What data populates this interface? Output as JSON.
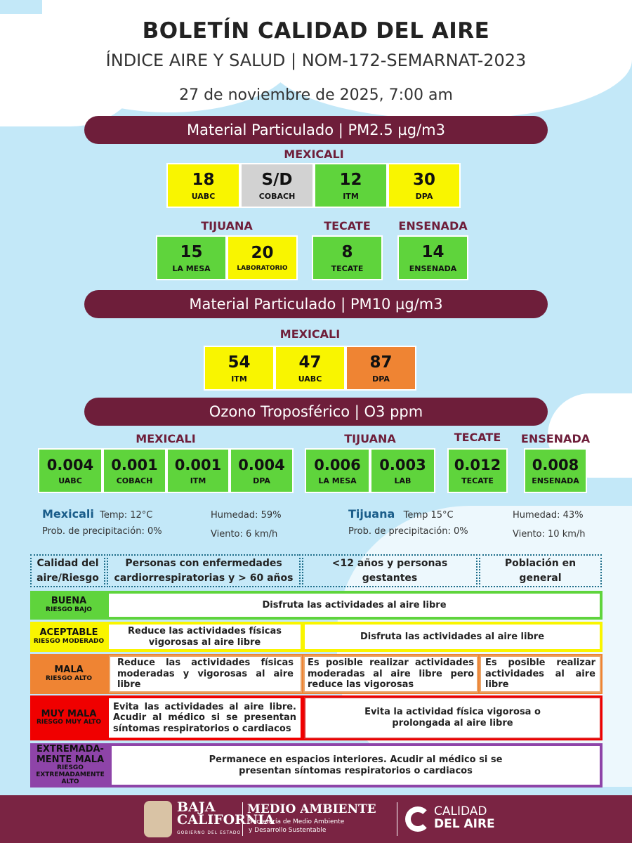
{
  "header": {
    "title": "BOLETÍN CALIDAD DEL AIRE",
    "subtitle": "ÍNDICE AIRE Y SALUD  | NOM-172-SEMARNAT-2023",
    "date": "27 de noviembre de 2025, 7:00 am"
  },
  "pm25": {
    "title": "Material Particulado  | PM2.5  µg/m3",
    "mexicali": {
      "label": "MEXICALI",
      "stations": [
        {
          "value": "18",
          "name": "UABC",
          "color": "#f9f500"
        },
        {
          "value": "S/D",
          "name": "COBACH",
          "color": "#d2d2d2"
        },
        {
          "value": "12",
          "name": "ITM",
          "color": "#5fd43c"
        },
        {
          "value": "30",
          "name": "DPA",
          "color": "#f9f500"
        }
      ]
    },
    "tijuana": {
      "label": "TIJUANA",
      "stations": [
        {
          "value": "15",
          "name": "LA MESA",
          "color": "#5fd43c"
        },
        {
          "value": "20",
          "name": "LABORATORIO",
          "color": "#f9f500"
        }
      ]
    },
    "tecate": {
      "label": "TECATE",
      "stations": [
        {
          "value": "8",
          "name": "TECATE",
          "color": "#5fd43c"
        }
      ]
    },
    "ensenada": {
      "label": "ENSENADA",
      "stations": [
        {
          "value": "14",
          "name": "ENSENADA",
          "color": "#5fd43c"
        }
      ]
    }
  },
  "pm10": {
    "title": "Material Particulado  | PM10  µg/m3",
    "mexicali": {
      "label": "MEXICALI",
      "stations": [
        {
          "value": "54",
          "name": "ITM",
          "color": "#f9f500"
        },
        {
          "value": "47",
          "name": "UABC",
          "color": "#f9f500"
        },
        {
          "value": "87",
          "name": "DPA",
          "color": "#ef8433"
        }
      ]
    }
  },
  "o3": {
    "title": "Ozono Troposférico  | O3  ppm",
    "mexicali": {
      "label": "MEXICALI",
      "stations": [
        {
          "value": "0.004",
          "name": "UABC"
        },
        {
          "value": "0.001",
          "name": "COBACH"
        },
        {
          "value": "0.001",
          "name": "ITM"
        },
        {
          "value": "0.004",
          "name": "DPA"
        }
      ]
    },
    "tijuana": {
      "label": "TIJUANA",
      "stations": [
        {
          "value": "0.006",
          "name": "LA MESA"
        },
        {
          "value": "0.003",
          "name": "LAB"
        }
      ]
    },
    "tecate": {
      "label": "TECATE",
      "stations": [
        {
          "value": "0.012",
          "name": "TECATE"
        }
      ]
    },
    "ensenada": {
      "label": "ENSENADA",
      "stations": [
        {
          "value": "0.008",
          "name": "ENSENADA"
        }
      ]
    }
  },
  "weather": {
    "mexicali": {
      "city": "Mexicali",
      "temp": "Temp:  12°C",
      "humidity": "Humedad: 59%",
      "precip": "Prob. de precipitación:  0%",
      "wind": "Viento: 6 km/h"
    },
    "tijuana": {
      "city": "Tijuana",
      "temp": "Temp 15°C",
      "humidity": "Humedad: 43%",
      "precip": "Prob. de precipitación: 0%",
      "wind": "Viento:  10 km/h"
    }
  },
  "table": {
    "headers": [
      "Calidad del aire/Riesgo",
      "Personas con enfermedades cardiorrespiratorias y > 60 años",
      "<12 años y personas gestantes",
      "Población en general"
    ],
    "rows": [
      {
        "level": "BUENA",
        "risk": "RIESGO BAJO",
        "color": "#5fd43c",
        "cells": [
          "Disfruta las actividades al aire libre"
        ]
      },
      {
        "level": "ACEPTABLE",
        "risk": "RIESGO MODERADO",
        "color": "#f9f500",
        "cells": [
          "Reduce las actividades físicas vigorosas al aire libre",
          "Disfruta las actividades al aire libre"
        ]
      },
      {
        "level": "MALA",
        "risk": "RIESGO ALTO",
        "color": "#ef8433",
        "cells": [
          "Reduce las actividades físicas moderadas y vigorosas al aire libre",
          "Es posible realizar actividades moderadas al aire libre pero reduce las vigorosas",
          "Es posible realizar actividades al aire libre"
        ]
      },
      {
        "level": "MUY MALA",
        "risk": "RIESGO MUY ALTO",
        "color": "#f00000",
        "cells": [
          "Evita las actividades al aire libre. Acudir al médico si se presentan síntomas respiratorios o cardiacos",
          "Evita la actividad física vigorosa o prolongada al aire libre"
        ]
      },
      {
        "level": "EXTREMADA-MENTE MALA",
        "risk": "RIESGO EXTREMADAMENTE ALTO",
        "color": "#8e44a8",
        "cells": [
          "Permanece en espacios interiores. Acudir al médico si se presentan síntomas respiratorios o cardiacos"
        ]
      }
    ]
  },
  "footer": {
    "gov_logo": "BAJA CALIFORNIA",
    "gov_sub": "GOBIERNO DEL ESTADO",
    "dept": "MEDIO AMBIENTE",
    "dept_sub1": "Secretaría de Medio Ambiente",
    "dept_sub2": "y Desarrollo Sustentable",
    "brand1": "CALIDAD",
    "brand2": "DEL AIRE"
  }
}
